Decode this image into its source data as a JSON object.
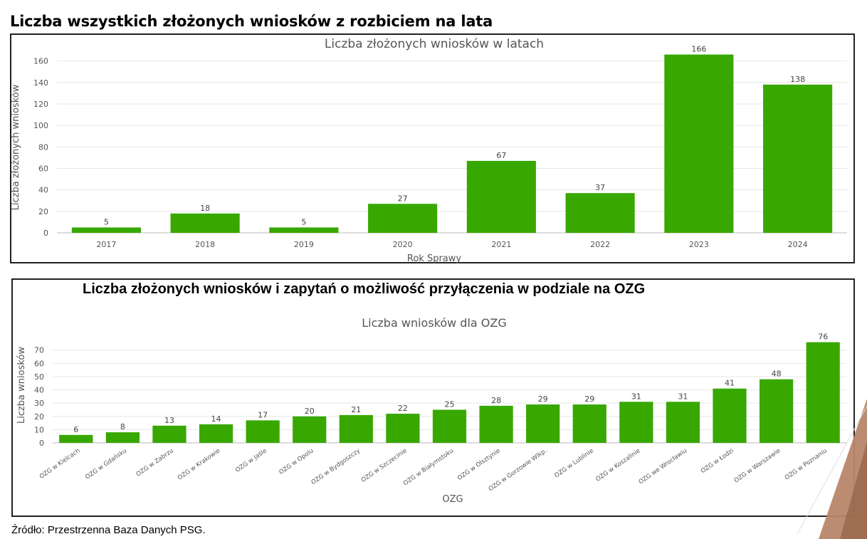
{
  "page_heading": "Liczba wszystkich złożonych wniosków z rozbiciem na lata",
  "panel2_heading": "Liczba złożonych wniosków i zapytań o możliwość przyłączenia w podziale na OZG",
  "source": {
    "label": "Źródło",
    "text": ": Przestrzenna Baza Danych PSG."
  },
  "colors": {
    "bar": "#38a800",
    "grid": "#e6e6e6",
    "axis": "#bbbbbb",
    "text": "#555555",
    "deco": "#b8866a"
  },
  "chart_data": [
    {
      "type": "bar",
      "title": "Liczba złożonych wniosków w latach",
      "xlabel": "Rok Sprawy",
      "ylabel": "Liczba złożonych wniosków",
      "categories": [
        "2017",
        "2018",
        "2019",
        "2020",
        "2021",
        "2022",
        "2023",
        "2024"
      ],
      "values": [
        5,
        18,
        5,
        27,
        67,
        37,
        166,
        138
      ],
      "ylim": [
        0,
        175
      ],
      "yticks": [
        0,
        20,
        40,
        60,
        80,
        100,
        120,
        140,
        160
      ],
      "grid": true,
      "data_labels": true
    },
    {
      "type": "bar",
      "title": "Liczba wniosków dla OZG",
      "xlabel": "OZG",
      "ylabel": "Liczba wniosków",
      "categories": [
        "OZG w Kielcach",
        "OZG w Gdańsku",
        "OZG w Zabrzu",
        "OZG w Krakowie",
        "OZG w Jaśle",
        "OZG w Opolu",
        "OZG w Bydgoszczy",
        "OZG w Szczecinie",
        "OZG w Białymstoku",
        "OZG w Olsztynie",
        "OZG w Gorzowie Wlkp.",
        "OZG w Lublinie",
        "OZG w Koszalinie",
        "OZG we Wrocławiu",
        "OZG w Łodzi",
        "OZG w Warszawie",
        "OZG w Poznaniu"
      ],
      "values": [
        6,
        8,
        13,
        14,
        17,
        20,
        21,
        22,
        25,
        28,
        29,
        29,
        31,
        31,
        41,
        48,
        76
      ],
      "ylim": [
        0,
        79
      ],
      "yticks": [
        0,
        10,
        20,
        30,
        40,
        50,
        60,
        70
      ],
      "grid": true,
      "data_labels": true
    }
  ]
}
